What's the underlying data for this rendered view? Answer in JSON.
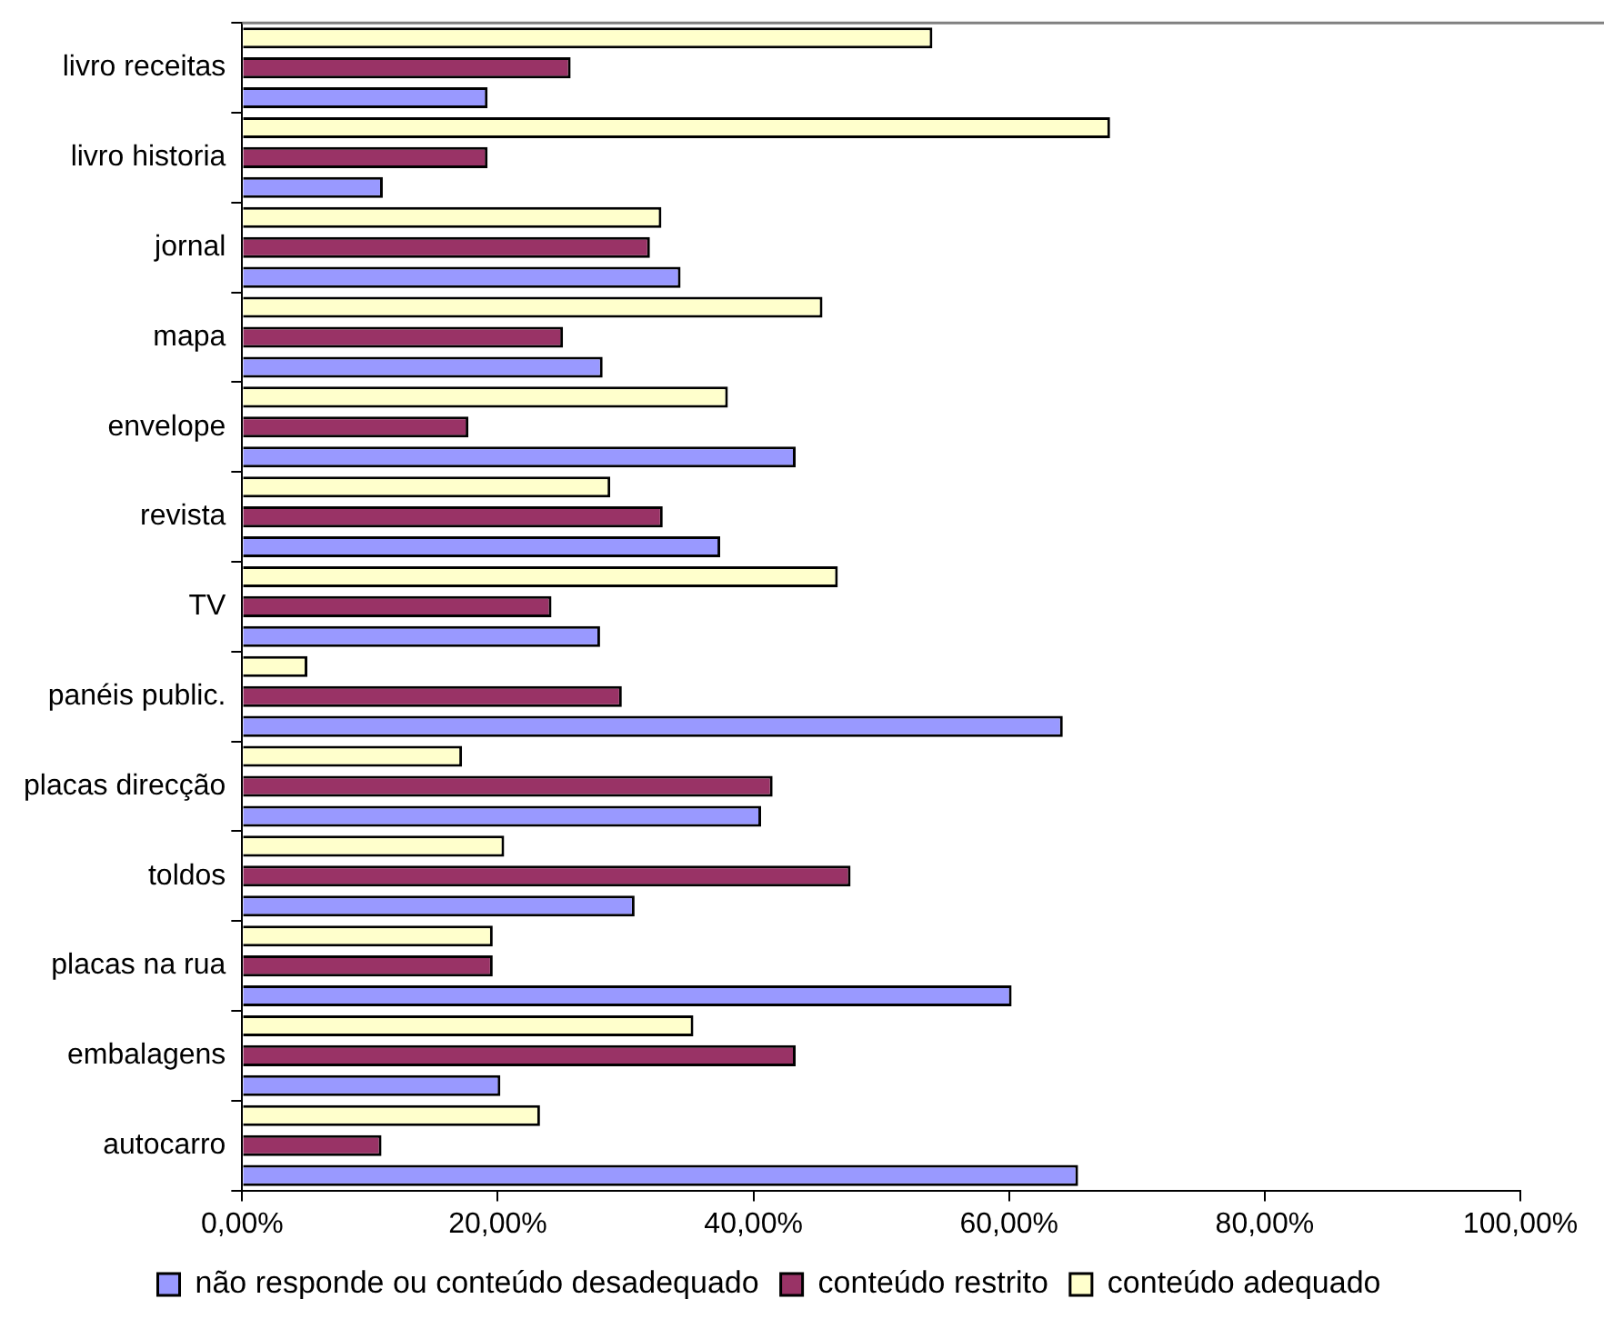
{
  "chart_data": {
    "type": "bar",
    "orientation": "horizontal",
    "categories": [
      "livro receitas",
      "livro historia",
      "jornal",
      "mapa",
      "envelope",
      "revista",
      "TV",
      "panéis public.",
      "placas direcção",
      "toldos",
      "placas na rua",
      "embalagens",
      "autocarro"
    ],
    "series": [
      {
        "name": "não responde ou conteúdo desadequado",
        "color": "#9999ff",
        "values": [
          19.2,
          11.0,
          34.3,
          28.2,
          43.3,
          37.4,
          28.0,
          64.2,
          40.6,
          30.7,
          60.2,
          20.2,
          65.4
        ]
      },
      {
        "name": "conteúdo restrito",
        "color": "#993366",
        "values": [
          25.7,
          19.2,
          31.9,
          25.1,
          17.7,
          32.9,
          24.2,
          29.7,
          41.5,
          47.6,
          19.6,
          43.3,
          10.9
        ]
      },
      {
        "name": "conteúdo adequado",
        "color": "#ffffcc",
        "values": [
          54.0,
          67.9,
          32.8,
          45.4,
          38.0,
          28.8,
          46.6,
          5.1,
          17.2,
          20.5,
          19.6,
          35.3,
          23.3
        ]
      }
    ],
    "xlim": [
      0,
      100
    ],
    "xticks": [
      {
        "value": 0,
        "label": "0,00%"
      },
      {
        "value": 20,
        "label": "20,00%"
      },
      {
        "value": 40,
        "label": "40,00%"
      },
      {
        "value": 60,
        "label": "60,00%"
      },
      {
        "value": 80,
        "label": "80,00%"
      },
      {
        "value": 100,
        "label": "100,00%"
      }
    ],
    "grid": false,
    "legend": "bottom"
  }
}
